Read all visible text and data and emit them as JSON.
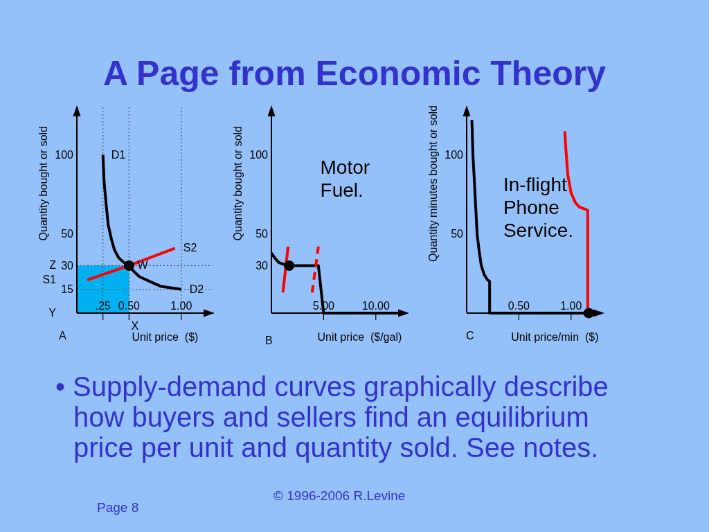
{
  "chart_data": [
    {
      "type": "other",
      "title": "A Page from Economic Theory"
    },
    {
      "type": "line",
      "xlabel": "Unit price  ($)",
      "ylabel": "Quantity bought or sold",
      "xlim": [
        0,
        1.3
      ],
      "ylim": [
        0,
        130
      ],
      "xticks": [
        {
          "value": 0.25,
          "label": ".25"
        },
        {
          "value": 0.5,
          "label": "0.50"
        },
        {
          "value": 1,
          "label": "1.00"
        }
      ],
      "yticks": [
        15,
        30,
        50,
        100
      ],
      "ref_lines": [
        {
          "axis": "x",
          "value": 0.25,
          "color": "#41506e",
          "line_style": "dotted"
        },
        {
          "axis": "x",
          "value": 0.5,
          "color": "#41506e",
          "line_style": "dotted"
        },
        {
          "axis": "x",
          "value": 1,
          "color": "#41506e",
          "line_style": "dotted"
        },
        {
          "axis": "y",
          "value": 30,
          "color": "#41506e",
          "line_style": "dotted"
        },
        {
          "axis": "y",
          "value": 15,
          "color": "#41506e",
          "line_style": "dotted"
        }
      ],
      "series": [
        {
          "type": "area",
          "color": "#00b0f0",
          "x": [
            0,
            0.5
          ],
          "values": [
            30,
            30
          ]
        },
        {
          "type": "line",
          "color": "#000000",
          "x": [
            0.25,
            0.26,
            0.28,
            0.3,
            0.33,
            0.36,
            0.4,
            0.45,
            0.5,
            0.55,
            0.6,
            0.7,
            0.8,
            0.9,
            1
          ],
          "values": [
            100,
            84,
            69,
            56,
            47,
            40,
            35,
            32,
            30,
            26,
            23,
            20,
            17,
            16,
            15
          ]
        },
        {
          "type": "line",
          "color": "#ff0000",
          "x": [
            0.1,
            0.5,
            0.94
          ],
          "values": [
            21,
            30,
            41
          ]
        },
        {
          "type": "scatter",
          "color": "#000000",
          "marker": "circle",
          "x": [
            0.5
          ],
          "values": [
            30
          ]
        }
      ],
      "annotations": [
        "A",
        {
          "text": "D1",
          "x": 0.25,
          "y": 100
        },
        {
          "text": "D2",
          "x": 1,
          "y": 15
        },
        {
          "text": "S1",
          "x": 0,
          "y": 21
        },
        {
          "text": "S2",
          "x": 0.94,
          "y": 41
        },
        {
          "text": "W",
          "x": 0.5,
          "y": 30
        },
        {
          "text": "Z",
          "x": 0,
          "y": 30
        },
        {
          "text": "Y",
          "x": 0,
          "y": 0
        },
        {
          "text": "X",
          "x": 0.5,
          "y": 0
        }
      ]
    },
    {
      "type": "line",
      "title": "Motor Fuel.",
      "xlabel": "Unit price  ($/gal)",
      "ylabel": "Quantity bought or sold",
      "xlim": [
        0,
        13
      ],
      "ylim": [
        0,
        130
      ],
      "xticks": [
        {
          "value": 5,
          "label": "5.00"
        },
        {
          "value": 10,
          "label": "10.00"
        }
      ],
      "yticks": [
        30,
        50,
        100
      ],
      "series": [
        {
          "type": "line",
          "color": "#000000",
          "x": [
            0,
            0.3,
            0.7,
            1.1,
            1.5,
            4.5,
            5,
            12.7
          ],
          "values": [
            38,
            35,
            32,
            31,
            30,
            30,
            0,
            0
          ]
        },
        {
          "type": "line",
          "color": "#ff0000",
          "x": [
            1.1,
            1.6
          ],
          "values": [
            13,
            42
          ]
        },
        {
          "type": "line",
          "color": "#ff0000",
          "line_style": "dashed",
          "x": [
            3.9,
            4.5
          ],
          "values": [
            13,
            42
          ]
        },
        {
          "type": "scatter",
          "color": "#000000",
          "marker": "circle",
          "x": [
            1.7
          ],
          "values": [
            30
          ]
        }
      ],
      "annotations": [
        "B"
      ]
    },
    {
      "type": "line",
      "title": "In-flight Phone Service.",
      "xlabel": "Unit price/min  ($)",
      "ylabel": "Quantity minutes bought or sold",
      "xlim": [
        0,
        1.3
      ],
      "ylim": [
        0,
        130
      ],
      "xticks": [
        {
          "value": 0.5,
          "label": "0.50"
        },
        {
          "value": 1,
          "label": "1.00"
        }
      ],
      "yticks": [
        50,
        100
      ],
      "series": [
        {
          "type": "line",
          "color": "#000000",
          "x": [
            0.05,
            0.06,
            0.07,
            0.085,
            0.1,
            0.12,
            0.14,
            0.17,
            0.2,
            0.22,
            0.22,
            1.27
          ],
          "values": [
            122,
            100,
            88,
            69,
            50,
            39,
            30,
            24,
            21,
            20,
            0,
            0
          ]
        },
        {
          "type": "line",
          "color": "#ff0000",
          "x": [
            0.94,
            0.95,
            0.96,
            0.97,
            1,
            1.04,
            1.08,
            1.12,
            1.16,
            1.16
          ],
          "values": [
            115,
            104,
            95,
            87,
            76,
            70,
            67,
            66,
            65,
            0
          ]
        },
        {
          "type": "scatter",
          "color": "#000000",
          "marker": "circle",
          "x": [
            1.17
          ],
          "values": [
            0
          ]
        }
      ],
      "annotations": [
        "C"
      ]
    },
    {
      "type": "other",
      "annotations": [
        "• Supply-demand curves graphically describe how buyers and sellers find an equilibrium price per unit and quantity sold. See notes.",
        "© 1996-2006 R.Levine",
        "Page 8"
      ]
    }
  ]
}
